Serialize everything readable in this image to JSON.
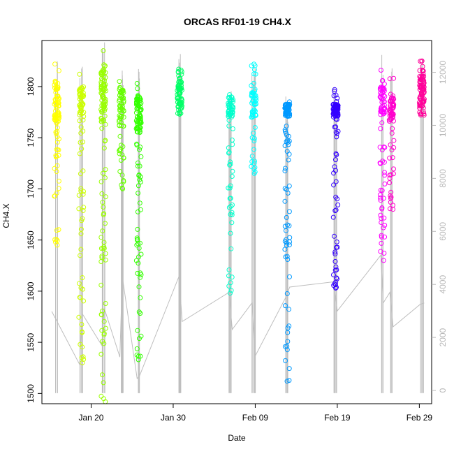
{
  "chart_data": {
    "type": "scatter",
    "title": "ORCAS RF01-19 CH4.X",
    "xlabel": "Date",
    "ylabel": "CH4.X",
    "x_ticks": [
      "Jan 20",
      "Jan 30",
      "Feb 09",
      "Feb 19",
      "Feb 29"
    ],
    "x_tick_days": [
      20,
      30,
      40,
      50,
      60
    ],
    "xlim_days": [
      14,
      61.5
    ],
    "y_ticks": [
      1500,
      1550,
      1600,
      1650,
      1700,
      1750,
      1800
    ],
    "ylim": [
      1490,
      1845
    ],
    "y2_ticks": [
      0,
      2000,
      4000,
      6000,
      8000,
      10000,
      12000
    ],
    "y2lim": [
      -500,
      13200
    ],
    "y2_label": "",
    "grid": false,
    "colors": {
      "secondary_series": "#bebebe",
      "axis": "#000000",
      "axis_right": "#b8b8b8"
    },
    "flights": [
      {
        "day": 15.8,
        "color": "#ffff00",
        "ymin": 1645,
        "ymax": 1822,
        "core": [
          1765,
          1805
        ],
        "n": 95
      },
      {
        "day": 18.8,
        "color": "#ccff00",
        "ymin": 1530,
        "ymax": 1812,
        "core": [
          1770,
          1800
        ],
        "n": 85
      },
      {
        "day": 21.5,
        "color": "#99ff00",
        "ymin": 1492,
        "ymax": 1835,
        "core": [
          1765,
          1820
        ],
        "n": 120
      },
      {
        "day": 23.7,
        "color": "#66ff00",
        "ymin": 1700,
        "ymax": 1805,
        "core": [
          1760,
          1800
        ],
        "n": 70
      },
      {
        "day": 25.8,
        "color": "#33ff00",
        "ymin": 1533,
        "ymax": 1803,
        "core": [
          1755,
          1790
        ],
        "n": 120
      },
      {
        "day": 30.8,
        "color": "#00ff66",
        "ymin": 1773,
        "ymax": 1817,
        "core": [
          1780,
          1805
        ],
        "n": 75
      },
      {
        "day": 37.0,
        "color": "#00ffcc",
        "ymin": 1598,
        "ymax": 1792,
        "core": [
          1770,
          1790
        ],
        "n": 80
      },
      {
        "day": 39.8,
        "color": "#00ffff",
        "ymin": 1715,
        "ymax": 1822,
        "core": [
          1770,
          1795
        ],
        "n": 60
      },
      {
        "day": 43.9,
        "color": "#0099ff",
        "ymin": 1512,
        "ymax": 1785,
        "core": [
          1770,
          1783
        ],
        "n": 110
      },
      {
        "day": 49.8,
        "color": "#3300ff",
        "ymin": 1603,
        "ymax": 1797,
        "core": [
          1770,
          1783
        ],
        "n": 110
      },
      {
        "day": 55.5,
        "color": "#ff00ff",
        "ymin": 1630,
        "ymax": 1816,
        "core": [
          1770,
          1800
        ],
        "n": 80
      },
      {
        "day": 56.6,
        "color": "#ff00cc",
        "ymin": 1680,
        "ymax": 1808,
        "core": [
          1765,
          1790
        ],
        "n": 70
      },
      {
        "day": 60.3,
        "color": "#ff0099",
        "ymin": 1772,
        "ymax": 1825,
        "core": [
          1775,
          1810
        ],
        "n": 85
      }
    ],
    "secondary_series_points": [
      {
        "day": 15.2,
        "y2": 2980
      },
      {
        "day": 18.6,
        "y2": 980
      },
      {
        "day": 18.9,
        "y2": 2900
      },
      {
        "day": 21.3,
        "y2": 1700
      },
      {
        "day": 21.6,
        "y2": 3100
      },
      {
        "day": 23.5,
        "y2": 1260
      },
      {
        "day": 23.8,
        "y2": 4300
      },
      {
        "day": 25.6,
        "y2": 450
      },
      {
        "day": 25.9,
        "y2": 550
      },
      {
        "day": 30.7,
        "y2": 4300
      },
      {
        "day": 31.1,
        "y2": 2600
      },
      {
        "day": 36.8,
        "y2": 3700
      },
      {
        "day": 37.2,
        "y2": 2300
      },
      {
        "day": 39.6,
        "y2": 3300
      },
      {
        "day": 40.0,
        "y2": 1300
      },
      {
        "day": 43.7,
        "y2": 3500
      },
      {
        "day": 44.2,
        "y2": 3900
      },
      {
        "day": 49.6,
        "y2": 4100
      },
      {
        "day": 50.0,
        "y2": 3000
      },
      {
        "day": 55.3,
        "y2": 5100
      },
      {
        "day": 55.6,
        "y2": 3300
      },
      {
        "day": 56.4,
        "y2": 3700
      },
      {
        "day": 56.8,
        "y2": 2400
      },
      {
        "day": 60.1,
        "y2": 3250
      },
      {
        "day": 60.6,
        "y2": 3300
      }
    ]
  }
}
